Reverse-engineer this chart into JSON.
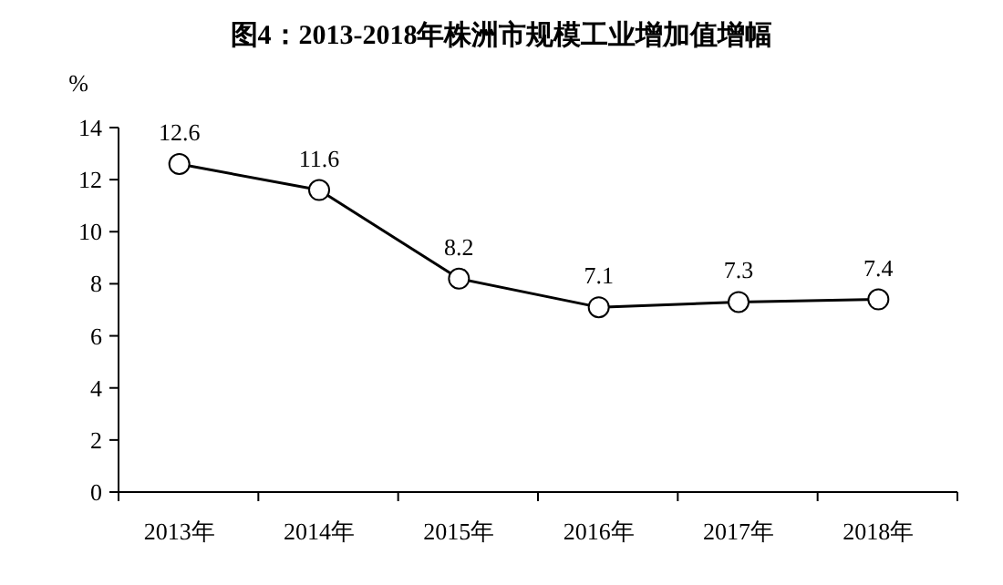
{
  "chart_data": {
    "type": "line",
    "title": "图4：2013-2018年株洲市规模工业增加值增幅",
    "ylabel": "%",
    "categories": [
      "2013年",
      "2014年",
      "2015年",
      "2016年",
      "2017年",
      "2018年"
    ],
    "series": [
      {
        "color": "#000000",
        "values": [
          12.6,
          11.6,
          8.2,
          7.1,
          7.3,
          7.4
        ]
      }
    ],
    "ylim": [
      0,
      14
    ],
    "yticks": [
      0,
      2,
      4,
      6,
      8,
      10,
      12,
      14
    ],
    "marker": "circle",
    "line_style": "solid",
    "data_labels": true,
    "grid": false
  }
}
